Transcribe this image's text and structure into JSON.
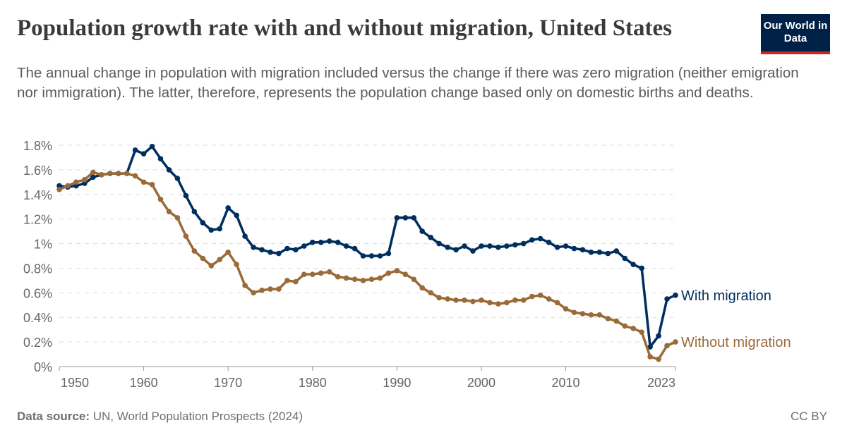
{
  "header": {
    "title": "Population growth rate with and without migration, United States",
    "subtitle": "The annual change in population with migration included versus the change if there was zero migration (neither emigration nor immigration). The latter, therefore, represents the population change based only on domestic births and deaths.",
    "logo": "Our World in Data"
  },
  "footer": {
    "source_label": "Data source:",
    "source": "UN, World Population Prospects (2024)",
    "license": "CC BY"
  },
  "chart_data": {
    "type": "line",
    "title": "Population growth rate with and without migration, United States",
    "xlim": [
      1950,
      2023
    ],
    "ylim": [
      0,
      1.8
    ],
    "x_ticks": [
      "1950",
      "1960",
      "1970",
      "1980",
      "1990",
      "2000",
      "2010",
      "2023"
    ],
    "y_ticks": [
      "0%",
      "0.2%",
      "0.4%",
      "0.6%",
      "0.8%",
      "1%",
      "1.2%",
      "1.4%",
      "1.6%",
      "1.8%"
    ],
    "grid": true,
    "legend": "inline-right",
    "x_start": 1950,
    "series": [
      {
        "name": "With migration",
        "color": "#002e5f",
        "values": [
          1.47,
          1.46,
          1.47,
          1.49,
          1.54,
          1.56,
          1.57,
          1.57,
          1.57,
          1.76,
          1.73,
          1.79,
          1.69,
          1.6,
          1.53,
          1.39,
          1.26,
          1.17,
          1.11,
          1.12,
          1.29,
          1.23,
          1.06,
          0.97,
          0.95,
          0.93,
          0.92,
          0.96,
          0.95,
          0.98,
          1.01,
          1.01,
          1.02,
          1.01,
          0.98,
          0.96,
          0.9,
          0.9,
          0.9,
          0.92,
          1.21,
          1.21,
          1.21,
          1.1,
          1.05,
          1.0,
          0.97,
          0.95,
          0.98,
          0.94,
          0.98,
          0.98,
          0.97,
          0.98,
          0.99,
          1.0,
          1.03,
          1.04,
          1.01,
          0.97,
          0.98,
          0.96,
          0.95,
          0.93,
          0.93,
          0.92,
          0.94,
          0.88,
          0.83,
          0.8,
          0.16,
          0.25,
          0.55,
          0.58
        ]
      },
      {
        "name": "Without migration",
        "color": "#9a6a38",
        "values": [
          1.44,
          1.47,
          1.5,
          1.52,
          1.58,
          1.56,
          1.57,
          1.57,
          1.57,
          1.55,
          1.5,
          1.48,
          1.36,
          1.26,
          1.21,
          1.06,
          0.94,
          0.88,
          0.82,
          0.87,
          0.93,
          0.83,
          0.66,
          0.6,
          0.62,
          0.63,
          0.63,
          0.7,
          0.69,
          0.75,
          0.75,
          0.76,
          0.77,
          0.73,
          0.72,
          0.71,
          0.7,
          0.71,
          0.72,
          0.76,
          0.78,
          0.75,
          0.71,
          0.64,
          0.6,
          0.56,
          0.55,
          0.54,
          0.54,
          0.53,
          0.54,
          0.52,
          0.51,
          0.52,
          0.54,
          0.54,
          0.57,
          0.58,
          0.55,
          0.52,
          0.47,
          0.44,
          0.43,
          0.42,
          0.42,
          0.39,
          0.37,
          0.33,
          0.31,
          0.28,
          0.08,
          0.06,
          0.17,
          0.2
        ]
      }
    ]
  }
}
